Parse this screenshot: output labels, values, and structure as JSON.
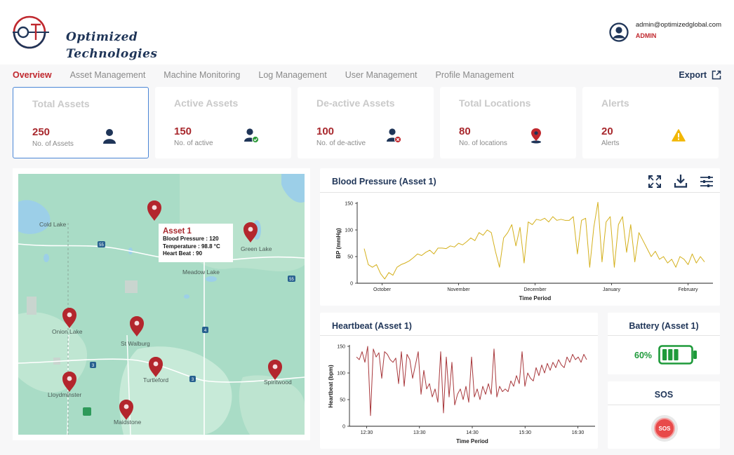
{
  "brand": {
    "line1": "Optimized",
    "line2": "Technologies"
  },
  "user": {
    "email": "admin@optimizedglobal.com",
    "role": "ADMIN"
  },
  "nav": {
    "items": [
      "Overview",
      "Asset Management",
      "Machine Monitoring",
      "Log Management",
      "User Management",
      "Profile Management"
    ],
    "active": "Overview",
    "export_label": "Export"
  },
  "cards": [
    {
      "title": "Total Assets",
      "value": "250",
      "subtitle": "No. of Assets",
      "icon": "user-icon"
    },
    {
      "title": "Active Assets",
      "value": "150",
      "subtitle": "No. of active",
      "icon": "user-check-icon"
    },
    {
      "title": "De-active Assets",
      "value": "100",
      "subtitle": "No. of de-active",
      "icon": "user-remove-icon"
    },
    {
      "title": "Total Locations",
      "value": "80",
      "subtitle": "No. of locations",
      "icon": "location-pin-icon"
    },
    {
      "title": "Alerts",
      "value": "20",
      "subtitle": "Alerts",
      "icon": "warning-icon"
    }
  ],
  "map": {
    "places": [
      "Cold Lake",
      "Green Lake",
      "Meadow Lake",
      "Onion Lake",
      "St Walburg",
      "Turtleford",
      "Lloydminster",
      "Spiritwood",
      "Maidstone"
    ],
    "roads": [
      "55",
      "55",
      "4",
      "3",
      "3",
      "4"
    ],
    "tooltip": {
      "title": "Asset 1",
      "lines": [
        "Blood Pressure : 120",
        "Temperature : 98.8 °C",
        "Heart Beat : 90"
      ]
    }
  },
  "bp_panel": {
    "title": "Blood Pressure (Asset 1)"
  },
  "hb_panel": {
    "title": "Heartbeat (Asset 1)"
  },
  "battery": {
    "title": "Battery (Asset 1)",
    "level": "60%",
    "fraction": 0.6
  },
  "sos": {
    "title": "SOS",
    "button_label": "SOS"
  },
  "colors": {
    "accent": "#a8282d",
    "navy": "#1f3558",
    "bp_line": "#d4b01c",
    "hb_line": "#a8383c",
    "battery": "#1e9a3a"
  },
  "chart_data": [
    {
      "type": "line",
      "xlabel": "Time Period",
      "ylabel": "BP (mmHg)",
      "ylim": [
        0,
        150
      ],
      "yticks": [
        0,
        50,
        100,
        150
      ],
      "xticks": [
        "October",
        "November",
        "December",
        "January",
        "February"
      ],
      "series": [
        {
          "values": [
            65,
            35,
            30,
            35,
            18,
            8,
            20,
            15,
            30,
            35,
            38,
            42,
            48,
            55,
            52,
            58,
            62,
            55,
            66,
            66,
            65,
            70,
            68,
            75,
            72,
            78,
            85,
            80,
            95,
            90,
            100,
            95,
            60,
            30,
            85,
            95,
            110,
            70,
            105,
            38,
            115,
            110,
            120,
            118,
            122,
            115,
            125,
            118,
            120,
            118,
            118,
            125,
            55,
            118,
            122,
            30,
            105,
            152,
            40,
            115,
            125,
            30,
            110,
            125,
            58,
            110,
            40,
            95,
            80,
            65,
            50,
            60,
            45,
            50,
            38,
            45,
            30,
            50,
            45,
            35,
            55,
            38,
            50,
            40
          ]
        }
      ]
    },
    {
      "type": "line",
      "xlabel": "Time Period",
      "ylabel": "Heartbeat (bpm)",
      "ylim": [
        0,
        150
      ],
      "yticks": [
        0,
        50,
        100,
        150
      ],
      "xticks": [
        "12:30",
        "13:30",
        "14:30",
        "15:30",
        "16:30"
      ],
      "series": [
        {
          "values": [
            130,
            125,
            140,
            120,
            150,
            20,
            145,
            130,
            138,
            90,
            140,
            135,
            125,
            120,
            128,
            80,
            140,
            75,
            135,
            125,
            90,
            115,
            140,
            60,
            105,
            70,
            80,
            55,
            70,
            45,
            140,
            25,
            130,
            55,
            120,
            40,
            60,
            70,
            50,
            75,
            45,
            130,
            55,
            70,
            50,
            75,
            60,
            80,
            60,
            145,
            55,
            75,
            65,
            70,
            65,
            85,
            75,
            95,
            80,
            140,
            75,
            100,
            90,
            85,
            110,
            95,
            115,
            100,
            118,
            105,
            120,
            110,
            125,
            115,
            110,
            130,
            120,
            135,
            125,
            130,
            120,
            135,
            125
          ]
        }
      ]
    }
  ]
}
